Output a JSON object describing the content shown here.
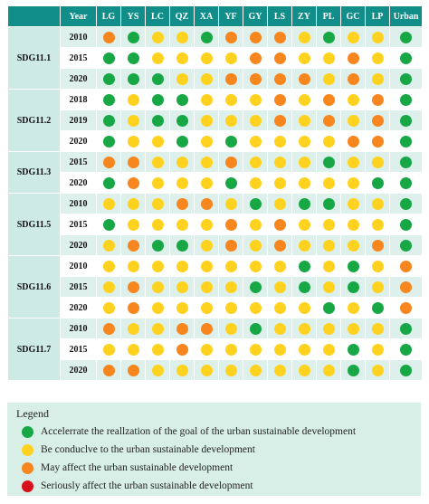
{
  "colors": {
    "header_bg": "#128e8a",
    "group_bg": "#cdeae4",
    "odd_row_bg": "#ddf0eb",
    "legend_bg": "#d8efe8",
    "G": "#17a845",
    "Y": "#ffd21f",
    "O": "#f7861e",
    "R": "#d8101c"
  },
  "chart_data": {
    "type": "table",
    "year_header": "Year",
    "columns": [
      "LG",
      "YS",
      "LC",
      "QZ",
      "XA",
      "YF",
      "GY",
      "LS",
      "ZY",
      "PL",
      "GC",
      "LP",
      "Urban"
    ],
    "status_codes": {
      "G": "Accelerrate the reallzation of the goal of the urban sustainable development",
      "Y": "Be conduclve to the urban sustainable development",
      "O": "May affect the urban sustainable development",
      "R": "Seriously affect the urban sustainable development"
    },
    "groups": [
      {
        "name": "SDG11.1",
        "rows": [
          {
            "year": "2010",
            "values": [
              "O",
              "G",
              "Y",
              "Y",
              "G",
              "O",
              "O",
              "O",
              "Y",
              "G",
              "Y",
              "Y",
              "G"
            ]
          },
          {
            "year": "2015",
            "values": [
              "G",
              "G",
              "Y",
              "Y",
              "Y",
              "Y",
              "O",
              "O",
              "Y",
              "Y",
              "O",
              "Y",
              "G"
            ]
          },
          {
            "year": "2020",
            "values": [
              "G",
              "G",
              "G",
              "Y",
              "Y",
              "O",
              "O",
              "O",
              "O",
              "Y",
              "O",
              "Y",
              "G"
            ]
          }
        ]
      },
      {
        "name": "SDG11.2",
        "rows": [
          {
            "year": "2018",
            "values": [
              "G",
              "Y",
              "G",
              "G",
              "Y",
              "Y",
              "Y",
              "O",
              "Y",
              "O",
              "Y",
              "O",
              "G"
            ]
          },
          {
            "year": "2019",
            "values": [
              "G",
              "Y",
              "G",
              "G",
              "Y",
              "Y",
              "Y",
              "O",
              "Y",
              "O",
              "Y",
              "O",
              "G"
            ]
          },
          {
            "year": "2020",
            "values": [
              "G",
              "Y",
              "Y",
              "G",
              "Y",
              "G",
              "Y",
              "Y",
              "Y",
              "Y",
              "O",
              "O",
              "G"
            ]
          }
        ]
      },
      {
        "name": "SDG11.3",
        "rows": [
          {
            "year": "2015",
            "values": [
              "O",
              "O",
              "Y",
              "Y",
              "Y",
              "O",
              "Y",
              "Y",
              "Y",
              "G",
              "Y",
              "Y",
              "G"
            ]
          },
          {
            "year": "2020",
            "values": [
              "G",
              "O",
              "Y",
              "Y",
              "Y",
              "G",
              "Y",
              "Y",
              "Y",
              "Y",
              "Y",
              "G",
              "G"
            ]
          }
        ]
      },
      {
        "name": "SDG11.5",
        "rows": [
          {
            "year": "2010",
            "values": [
              "Y",
              "Y",
              "Y",
              "O",
              "O",
              "Y",
              "G",
              "Y",
              "G",
              "G",
              "Y",
              "Y",
              "G"
            ]
          },
          {
            "year": "2015",
            "values": [
              "G",
              "Y",
              "Y",
              "Y",
              "Y",
              "O",
              "Y",
              "O",
              "Y",
              "Y",
              "Y",
              "Y",
              "G"
            ]
          },
          {
            "year": "2020",
            "values": [
              "Y",
              "O",
              "G",
              "G",
              "Y",
              "O",
              "Y",
              "O",
              "Y",
              "Y",
              "Y",
              "O",
              "G"
            ]
          }
        ]
      },
      {
        "name": "SDG11.6",
        "rows": [
          {
            "year": "2010",
            "values": [
              "Y",
              "Y",
              "Y",
              "Y",
              "Y",
              "Y",
              "Y",
              "Y",
              "G",
              "Y",
              "G",
              "Y",
              "O"
            ]
          },
          {
            "year": "2015",
            "values": [
              "Y",
              "O",
              "Y",
              "Y",
              "Y",
              "Y",
              "G",
              "Y",
              "G",
              "Y",
              "G",
              "Y",
              "O"
            ]
          },
          {
            "year": "2020",
            "values": [
              "Y",
              "O",
              "Y",
              "Y",
              "Y",
              "Y",
              "Y",
              "Y",
              "Y",
              "G",
              "Y",
              "G",
              "O"
            ]
          }
        ]
      },
      {
        "name": "SDG11.7",
        "rows": [
          {
            "year": "2010",
            "values": [
              "O",
              "Y",
              "Y",
              "O",
              "O",
              "Y",
              "G",
              "Y",
              "Y",
              "Y",
              "Y",
              "Y",
              "G"
            ]
          },
          {
            "year": "2015",
            "values": [
              "Y",
              "Y",
              "Y",
              "O",
              "Y",
              "Y",
              "Y",
              "Y",
              "Y",
              "Y",
              "G",
              "Y",
              "G"
            ]
          },
          {
            "year": "2020",
            "values": [
              "O",
              "O",
              "Y",
              "Y",
              "Y",
              "Y",
              "Y",
              "Y",
              "Y",
              "Y",
              "G",
              "Y",
              "G"
            ]
          }
        ]
      }
    ]
  },
  "legend": {
    "title": "Legend",
    "items": [
      {
        "code": "G",
        "label": "Accelerrate the reallzation of the goal of the urban sustainable development"
      },
      {
        "code": "Y",
        "label": "Be conduclve to the urban sustainable development"
      },
      {
        "code": "O",
        "label": "May affect the urban sustainable development"
      },
      {
        "code": "R",
        "label": "Seriously affect the urban sustainable development"
      }
    ]
  }
}
